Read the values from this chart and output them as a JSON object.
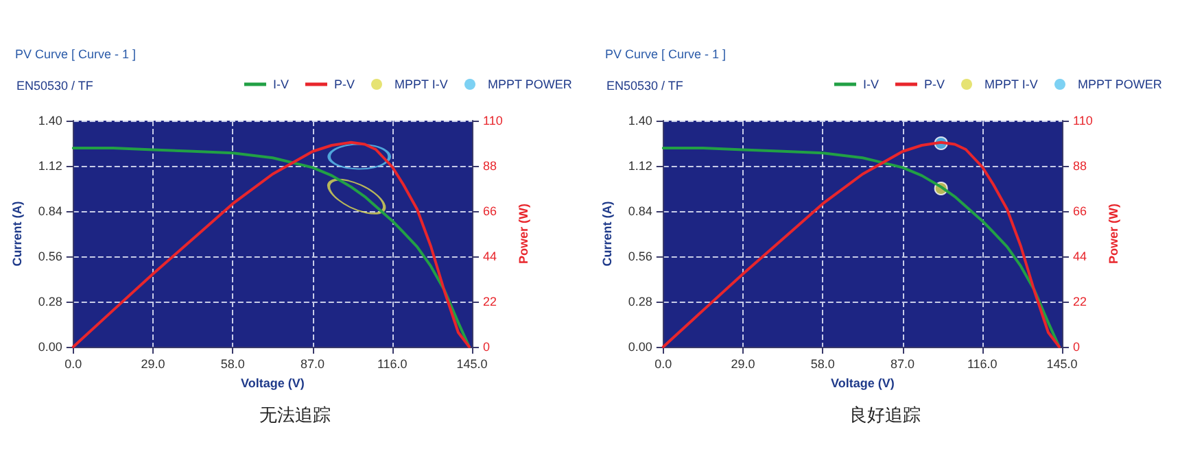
{
  "chart_data": [
    {
      "type": "line",
      "title": "PV Curve [ Curve - 1 ]",
      "subtitle": "EN50530 / TF",
      "xlabel": "Voltage (V)",
      "ylabel": "Current (A)",
      "y2label": "Power (W)",
      "annotations": [
        "无法追踪"
      ],
      "legend": "top right",
      "grid": true,
      "x": [
        0,
        14.5,
        29,
        43.5,
        58,
        72.5,
        87,
        94,
        101,
        106,
        110,
        116,
        120,
        125,
        130,
        135,
        140,
        144
      ],
      "xlim": [
        0,
        145
      ],
      "xticks": [
        {
          "value": 0,
          "label": "0.0"
        },
        {
          "value": 29,
          "label": "29.0"
        },
        {
          "value": 58,
          "label": "58.0"
        },
        {
          "value": 87,
          "label": "87.0"
        },
        {
          "value": 116,
          "label": "116.0"
        },
        {
          "value": 145,
          "label": "145.0"
        }
      ],
      "ylim": [
        0,
        1.4
      ],
      "yticks": [
        {
          "value": 0,
          "label": "0.00"
        },
        {
          "value": 0.28,
          "label": "0.28"
        },
        {
          "value": 0.56,
          "label": "0.56"
        },
        {
          "value": 0.84,
          "label": "0.84"
        },
        {
          "value": 1.12,
          "label": "1.12"
        },
        {
          "value": 1.4,
          "label": "1.40"
        }
      ],
      "y2lim": [
        0,
        110
      ],
      "y2ticks": [
        0,
        22,
        44,
        66,
        88,
        110
      ],
      "series": [
        {
          "name": "I-V",
          "color": "#22a045",
          "marker": "none",
          "values": [
            1.23,
            1.23,
            1.22,
            1.21,
            1.2,
            1.17,
            1.11,
            1.06,
            0.99,
            0.93,
            0.87,
            0.78,
            0.71,
            0.62,
            0.5,
            0.35,
            0.15,
            0
          ]
        },
        {
          "name": "P-V",
          "color": "#e8262c",
          "marker": "none",
          "axis": "y2",
          "values": [
            0,
            17.8,
            35.5,
            52.5,
            69.6,
            84,
            95,
            98,
            99.4,
            98.5,
            96,
            87.5,
            79,
            67,
            49,
            27,
            7,
            0
          ]
        },
        {
          "name": "MPPT I-V",
          "type": "bubble",
          "color": "#e0dc50",
          "x": [
            103
          ],
          "values": [
            0.93
          ],
          "sizes": [
            1
          ]
        },
        {
          "name": "MPPT POWER",
          "type": "bubble",
          "color": "#5cc6f0",
          "axis": "y2",
          "x": [
            104
          ],
          "values": [
            92.5
          ],
          "sizes": [
            1
          ]
        }
      ]
    },
    {
      "type": "line",
      "title": "PV Curve [ Curve - 1 ]",
      "subtitle": "EN50530 / TF",
      "xlabel": "Voltage (V)",
      "ylabel": "Current (A)",
      "y2label": "Power (W)",
      "annotations": [
        "良好追踪"
      ],
      "legend": "top right",
      "grid": true,
      "x": [
        0,
        14.5,
        29,
        43.5,
        58,
        72.5,
        87,
        94,
        101,
        106,
        110,
        116,
        120,
        125,
        130,
        135,
        140,
        144
      ],
      "xlim": [
        0,
        145
      ],
      "xticks": [
        {
          "value": 0,
          "label": "0.0"
        },
        {
          "value": 29,
          "label": "29.0"
        },
        {
          "value": 58,
          "label": "58.0"
        },
        {
          "value": 87,
          "label": "87.0"
        },
        {
          "value": 116,
          "label": "116.0"
        },
        {
          "value": 145,
          "label": "145.0"
        }
      ],
      "ylim": [
        0,
        1.4
      ],
      "yticks": [
        {
          "value": 0,
          "label": "0.00"
        },
        {
          "value": 0.28,
          "label": "0.28"
        },
        {
          "value": 0.56,
          "label": "0.56"
        },
        {
          "value": 0.84,
          "label": "0.84"
        },
        {
          "value": 1.12,
          "label": "1.12"
        },
        {
          "value": 1.4,
          "label": "1.40"
        }
      ],
      "y2lim": [
        0,
        110
      ],
      "y2ticks": [
        0,
        22,
        44,
        66,
        88,
        110
      ],
      "series": [
        {
          "name": "I-V",
          "color": "#22a045",
          "marker": "none",
          "values": [
            1.23,
            1.23,
            1.22,
            1.21,
            1.2,
            1.17,
            1.11,
            1.06,
            0.99,
            0.93,
            0.87,
            0.78,
            0.71,
            0.62,
            0.5,
            0.35,
            0.15,
            0
          ]
        },
        {
          "name": "P-V",
          "color": "#e8262c",
          "marker": "none",
          "axis": "y2",
          "values": [
            0,
            17.8,
            35.5,
            52.5,
            69.6,
            84,
            95,
            98,
            99.4,
            98.5,
            96,
            87.5,
            79,
            67,
            49,
            27,
            7,
            0
          ]
        },
        {
          "name": "MPPT I-V",
          "type": "scatter",
          "marker": "circle",
          "color": "#e0dc50",
          "x": [
            101
          ],
          "values": [
            0.98
          ]
        },
        {
          "name": "MPPT POWER",
          "type": "scatter",
          "marker": "circle",
          "color": "#5cc6f0",
          "axis": "y2",
          "x": [
            101
          ],
          "values": [
            99
          ]
        }
      ]
    }
  ]
}
